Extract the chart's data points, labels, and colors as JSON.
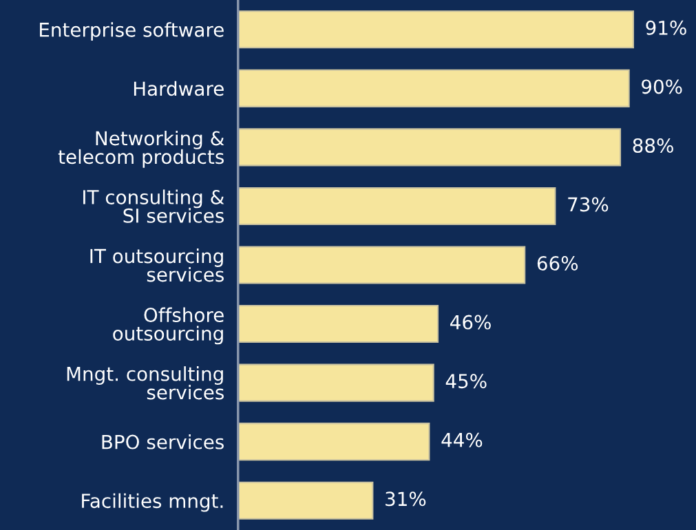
{
  "chart_data": {
    "type": "bar",
    "orientation": "horizontal",
    "categories": [
      "Enterprise software",
      "Hardware",
      "Networking &\ntelecom products",
      "IT consulting &\nSI services",
      "IT outsourcing\nservices",
      "Offshore\noutsourcing",
      "Mngt. consulting\nservices",
      "BPO services",
      "Facilities mngt."
    ],
    "values": [
      91,
      90,
      88,
      73,
      66,
      46,
      45,
      44,
      31
    ],
    "value_labels": [
      "91%",
      "90%",
      "88%",
      "73%",
      "66%",
      "46%",
      "45%",
      "44%",
      "31%"
    ],
    "color": "#f6e59c"
  }
}
